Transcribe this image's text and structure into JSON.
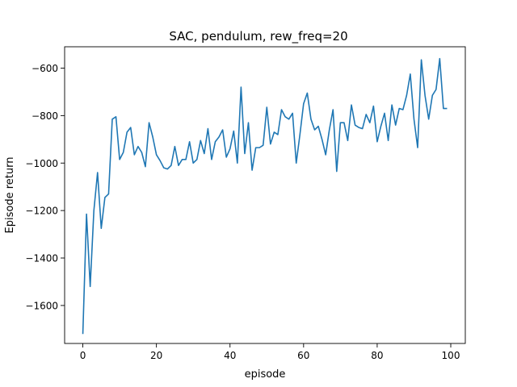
{
  "chart_data": {
    "type": "line",
    "title": "SAC, pendulum, rew_freq=20",
    "xlabel": "episode",
    "ylabel": "Episode return",
    "xlim": [
      -4.95,
      103.95
    ],
    "ylim": [
      -1760,
      -510
    ],
    "xticks": [
      0,
      20,
      40,
      60,
      80,
      100
    ],
    "yticks": [
      -1600,
      -1400,
      -1200,
      -1000,
      -800,
      -600
    ],
    "grid": false,
    "legend": "none",
    "line_color": "#1f77b4",
    "series": [
      {
        "x": [
          0,
          1,
          2,
          3,
          4,
          5,
          6,
          7,
          8,
          9,
          10,
          11,
          12,
          13,
          14,
          15,
          16,
          17,
          18,
          19,
          20,
          21,
          22,
          23,
          24,
          25,
          26,
          27,
          28,
          29,
          30,
          31,
          32,
          33,
          34,
          35,
          36,
          37,
          38,
          39,
          40,
          41,
          42,
          43,
          44,
          45,
          46,
          47,
          48,
          49,
          50,
          51,
          52,
          53,
          54,
          55,
          56,
          57,
          58,
          59,
          60,
          61,
          62,
          63,
          64,
          65,
          66,
          67,
          68,
          69,
          70,
          71,
          72,
          73,
          74,
          75,
          76,
          77,
          78,
          79,
          80,
          81,
          82,
          83,
          84,
          85,
          86,
          87,
          88,
          89,
          90,
          91,
          92,
          93,
          94,
          95,
          96,
          97,
          98,
          99
        ],
        "values": [
          -1720,
          -1215,
          -1520,
          -1200,
          -1040,
          -1275,
          -1145,
          -1130,
          -815,
          -805,
          -985,
          -955,
          -870,
          -850,
          -965,
          -930,
          -955,
          -1015,
          -830,
          -890,
          -965,
          -990,
          -1020,
          -1025,
          -1010,
          -930,
          -1010,
          -985,
          -985,
          -910,
          -1000,
          -985,
          -905,
          -960,
          -855,
          -985,
          -910,
          -890,
          -860,
          -975,
          -940,
          -865,
          -1000,
          -680,
          -960,
          -830,
          -1030,
          -935,
          -935,
          -925,
          -765,
          -920,
          -870,
          -880,
          -775,
          -805,
          -815,
          -790,
          -1000,
          -880,
          -750,
          -705,
          -815,
          -860,
          -845,
          -900,
          -965,
          -860,
          -775,
          -1035,
          -830,
          -830,
          -905,
          -755,
          -840,
          -850,
          -855,
          -795,
          -830,
          -760,
          -910,
          -845,
          -790,
          -905,
          -755,
          -840,
          -770,
          -775,
          -715,
          -625,
          -815,
          -935,
          -565,
          -715,
          -815,
          -715,
          -690,
          -560,
          -770,
          -770
        ]
      }
    ]
  }
}
